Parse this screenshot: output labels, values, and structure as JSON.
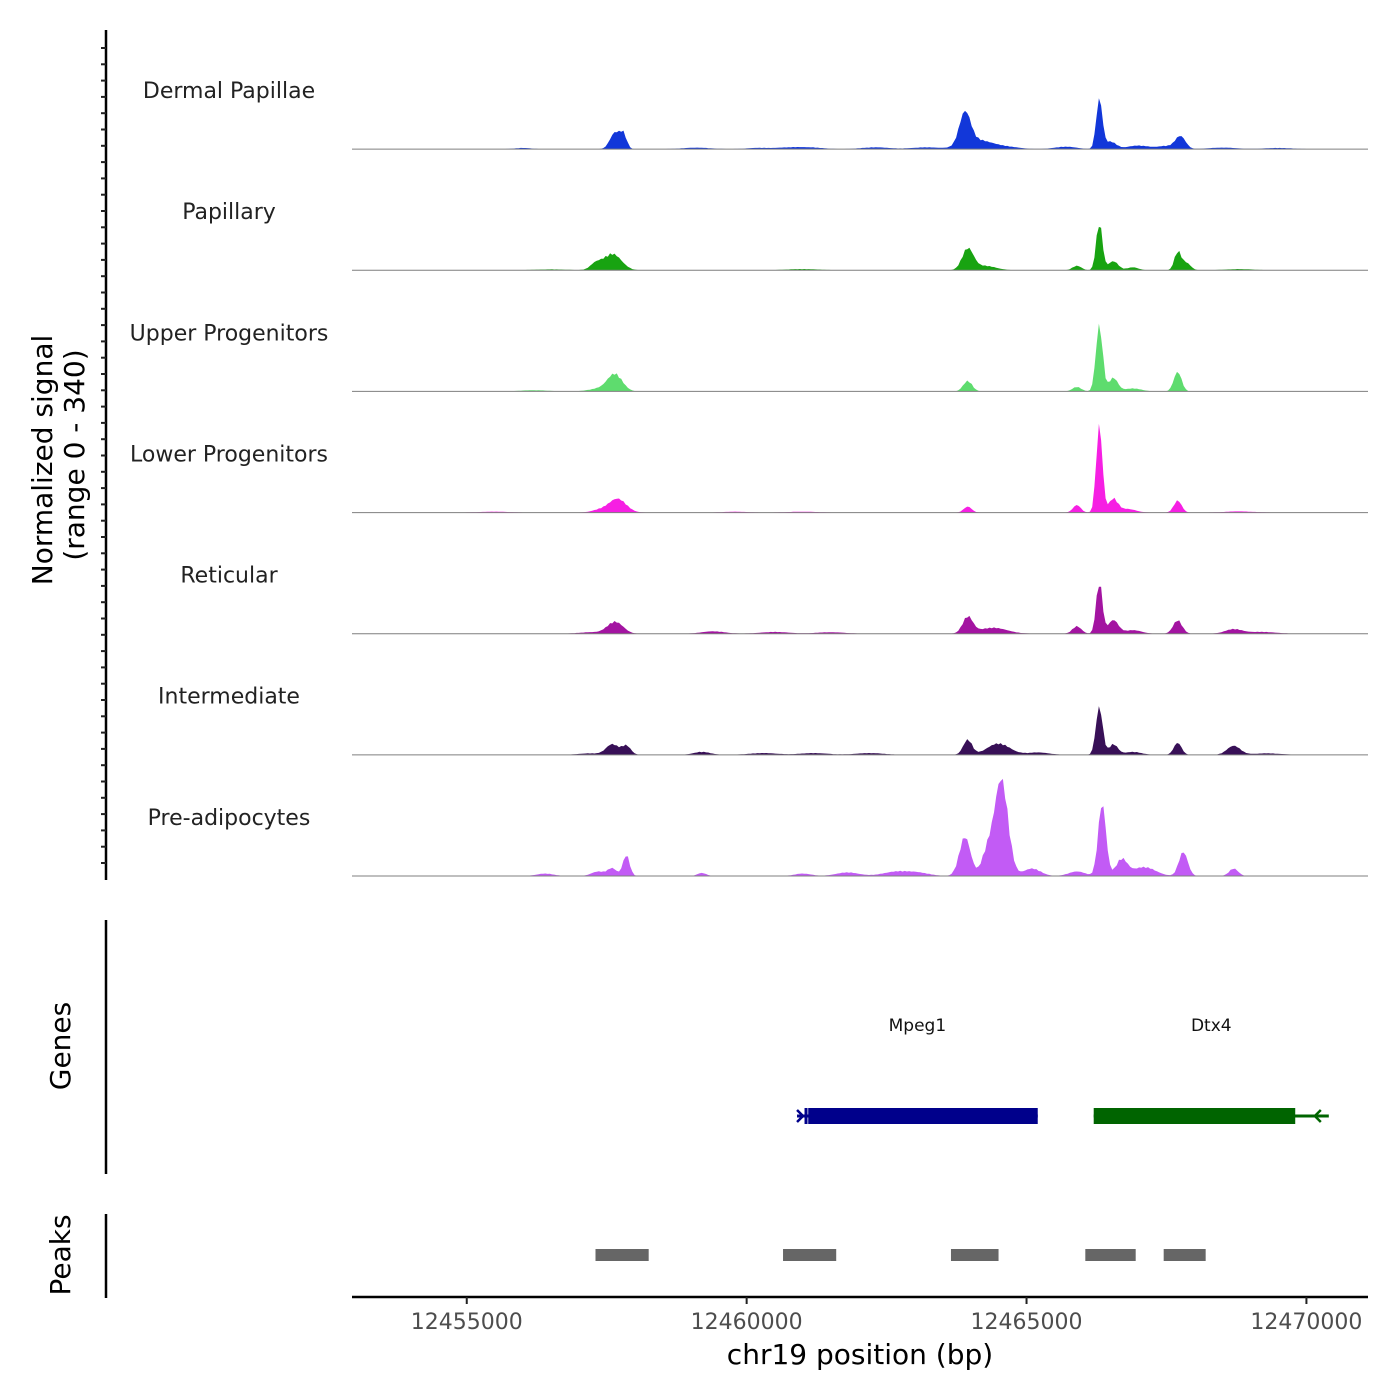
{
  "chart_data": {
    "type": "area",
    "title": "",
    "chromosome": "chr19",
    "xlabel": "chr19 position (bp)",
    "ylabel": "Normalized signal",
    "ylabel_range": "(range 0 - 340)",
    "ylim": [
      0,
      340
    ],
    "xlim": [
      12452950,
      12471100
    ],
    "x_ticks": [
      12455000,
      12460000,
      12465000,
      12470000
    ],
    "x_tick_labels": [
      "12455000",
      "12460000",
      "12465000",
      "12470000"
    ],
    "series": [
      {
        "name": "Dermal Papillae",
        "color": "#1237D9",
        "peaks": [
          [
            12457650,
            55,
            90
          ],
          [
            12457800,
            45,
            60
          ],
          [
            12456000,
            4,
            150
          ],
          [
            12459100,
            5,
            250
          ],
          [
            12460200,
            4,
            200
          ],
          [
            12460800,
            6,
            250
          ],
          [
            12461200,
            4,
            200
          ],
          [
            12462300,
            6,
            250
          ],
          [
            12463200,
            6,
            250
          ],
          [
            12463900,
            105,
            100
          ],
          [
            12464100,
            30,
            250
          ],
          [
            12464600,
            8,
            250
          ],
          [
            12465700,
            8,
            200
          ],
          [
            12466300,
            165,
            55
          ],
          [
            12466500,
            25,
            100
          ],
          [
            12467000,
            12,
            200
          ],
          [
            12467500,
            10,
            150
          ],
          [
            12467750,
            42,
            90
          ],
          [
            12468500,
            5,
            250
          ],
          [
            12469500,
            4,
            250
          ]
        ]
      },
      {
        "name": "Papillary",
        "color": "#18A311",
        "peaks": [
          [
            12457600,
            55,
            160
          ],
          [
            12457300,
            20,
            100
          ],
          [
            12456500,
            3,
            300
          ],
          [
            12461000,
            4,
            300
          ],
          [
            12463950,
            70,
            100
          ],
          [
            12464250,
            15,
            200
          ],
          [
            12465900,
            15,
            80
          ],
          [
            12466300,
            160,
            55
          ],
          [
            12466550,
            30,
            90
          ],
          [
            12466900,
            10,
            100
          ],
          [
            12467700,
            60,
            60
          ],
          [
            12467850,
            25,
            80
          ],
          [
            12468800,
            4,
            250
          ]
        ]
      },
      {
        "name": "Upper Progenitors",
        "color": "#5EDC6E",
        "peaks": [
          [
            12457650,
            55,
            130
          ],
          [
            12457400,
            10,
            200
          ],
          [
            12456200,
            4,
            250
          ],
          [
            12463950,
            35,
            80
          ],
          [
            12465900,
            15,
            80
          ],
          [
            12466300,
            220,
            60
          ],
          [
            12466550,
            45,
            80
          ],
          [
            12466900,
            10,
            150
          ],
          [
            12467700,
            65,
            70
          ]
        ]
      },
      {
        "name": "Lower Progenitors",
        "color": "#F61FE3",
        "peaks": [
          [
            12457700,
            45,
            150
          ],
          [
            12457400,
            10,
            150
          ],
          [
            12455500,
            3,
            250
          ],
          [
            12459800,
            3,
            200
          ],
          [
            12461000,
            3,
            250
          ],
          [
            12463950,
            20,
            70
          ],
          [
            12465900,
            25,
            70
          ],
          [
            12466300,
            290,
            55
          ],
          [
            12466550,
            45,
            80
          ],
          [
            12466800,
            12,
            150
          ],
          [
            12467700,
            40,
            70
          ],
          [
            12468800,
            4,
            250
          ]
        ]
      },
      {
        "name": "Reticular",
        "color": "#A314A1",
        "peaks": [
          [
            12457650,
            40,
            140
          ],
          [
            12457200,
            5,
            200
          ],
          [
            12459400,
            8,
            200
          ],
          [
            12460500,
            6,
            250
          ],
          [
            12461500,
            5,
            250
          ],
          [
            12463950,
            55,
            90
          ],
          [
            12464400,
            20,
            250
          ],
          [
            12465900,
            25,
            80
          ],
          [
            12466300,
            175,
            55
          ],
          [
            12466550,
            45,
            90
          ],
          [
            12466900,
            12,
            150
          ],
          [
            12467700,
            45,
            80
          ],
          [
            12468700,
            15,
            150
          ],
          [
            12469200,
            6,
            250
          ]
        ]
      },
      {
        "name": "Intermediate",
        "color": "#381057",
        "peaks": [
          [
            12457600,
            35,
            110
          ],
          [
            12457850,
            30,
            80
          ],
          [
            12457200,
            5,
            200
          ],
          [
            12459200,
            10,
            150
          ],
          [
            12460300,
            6,
            250
          ],
          [
            12461200,
            6,
            250
          ],
          [
            12462200,
            6,
            250
          ],
          [
            12463950,
            50,
            80
          ],
          [
            12464500,
            38,
            200
          ],
          [
            12465200,
            8,
            200
          ],
          [
            12466300,
            160,
            60
          ],
          [
            12466550,
            35,
            80
          ],
          [
            12466900,
            10,
            150
          ],
          [
            12467700,
            40,
            70
          ],
          [
            12468700,
            30,
            120
          ],
          [
            12469300,
            5,
            250
          ]
        ]
      },
      {
        "name": "Pre-adipocytes",
        "color": "#C25BF5",
        "peaks": [
          [
            12456400,
            8,
            150
          ],
          [
            12457350,
            15,
            120
          ],
          [
            12457600,
            25,
            80
          ],
          [
            12457850,
            70,
            60
          ],
          [
            12459200,
            10,
            80
          ],
          [
            12461000,
            8,
            150
          ],
          [
            12461800,
            12,
            200
          ],
          [
            12462700,
            15,
            250
          ],
          [
            12463100,
            8,
            200
          ],
          [
            12463900,
            130,
            100
          ],
          [
            12464300,
            80,
            100
          ],
          [
            12464550,
            320,
            120
          ],
          [
            12465100,
            25,
            150
          ],
          [
            12465900,
            15,
            150
          ],
          [
            12466350,
            240,
            70
          ],
          [
            12466700,
            55,
            100
          ],
          [
            12467100,
            30,
            200
          ],
          [
            12467800,
            80,
            80
          ],
          [
            12468700,
            25,
            80
          ]
        ]
      }
    ],
    "genes_label": "Genes",
    "genes": [
      {
        "name": "Mpeg1",
        "start": 12460900,
        "end": 12465200,
        "thick_start": 12461100,
        "thick_end": 12465200,
        "strand": "+",
        "color": "#00008B"
      },
      {
        "name": "Dtx4",
        "start": 12466200,
        "end": 12470400,
        "thick_start": 12466200,
        "thick_end": 12469800,
        "strand": "-",
        "color": "#006400"
      }
    ],
    "peaks_label": "Peaks",
    "peak_regions": [
      [
        12457300,
        12458250
      ],
      [
        12460650,
        12461600
      ],
      [
        12463650,
        12464500
      ],
      [
        12466050,
        12466950
      ],
      [
        12467450,
        12468200
      ]
    ],
    "peak_color": "#666666"
  }
}
